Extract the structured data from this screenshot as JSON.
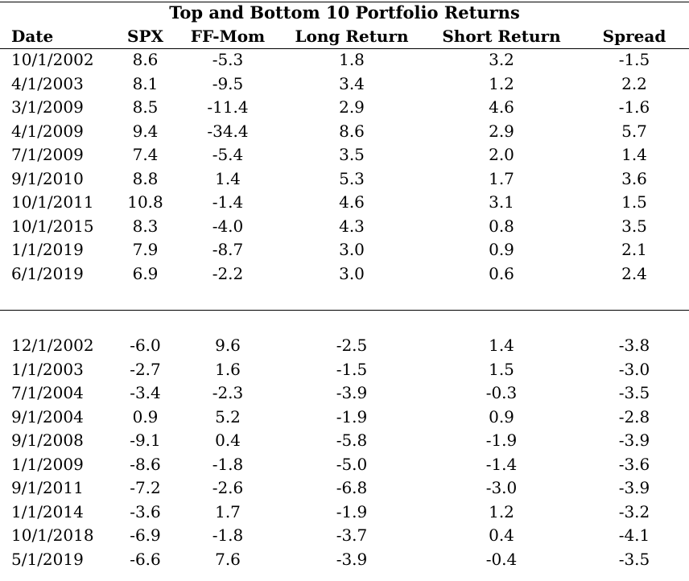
{
  "table": {
    "title": "Top and Bottom 10 Portfolio Returns",
    "columns": [
      "Date",
      "SPX",
      "FF-Mom",
      "Long Return",
      "Short Return",
      "Spread"
    ],
    "top_rows": [
      [
        "10/1/2002",
        "8.6",
        "-5.3",
        "1.8",
        "3.2",
        "-1.5"
      ],
      [
        "4/1/2003",
        "8.1",
        "-9.5",
        "3.4",
        "1.2",
        "2.2"
      ],
      [
        "3/1/2009",
        "8.5",
        "-11.4",
        "2.9",
        "4.6",
        "-1.6"
      ],
      [
        "4/1/2009",
        "9.4",
        "-34.4",
        "8.6",
        "2.9",
        "5.7"
      ],
      [
        "7/1/2009",
        "7.4",
        "-5.4",
        "3.5",
        "2.0",
        "1.4"
      ],
      [
        "9/1/2010",
        "8.8",
        "1.4",
        "5.3",
        "1.7",
        "3.6"
      ],
      [
        "10/1/2011",
        "10.8",
        "-1.4",
        "4.6",
        "3.1",
        "1.5"
      ],
      [
        "10/1/2015",
        "8.3",
        "-4.0",
        "4.3",
        "0.8",
        "3.5"
      ],
      [
        "1/1/2019",
        "7.9",
        "-8.7",
        "3.0",
        "0.9",
        "2.1"
      ],
      [
        "6/1/2019",
        "6.9",
        "-2.2",
        "3.0",
        "0.6",
        "2.4"
      ]
    ],
    "bottom_rows": [
      [
        "12/1/2002",
        "-6.0",
        "9.6",
        "-2.5",
        "1.4",
        "-3.8"
      ],
      [
        "1/1/2003",
        "-2.7",
        "1.6",
        "-1.5",
        "1.5",
        "-3.0"
      ],
      [
        "7/1/2004",
        "-3.4",
        "-2.3",
        "-3.9",
        "-0.3",
        "-3.5"
      ],
      [
        "9/1/2004",
        "0.9",
        "5.2",
        "-1.9",
        "0.9",
        "-2.8"
      ],
      [
        "9/1/2008",
        "-9.1",
        "0.4",
        "-5.8",
        "-1.9",
        "-3.9"
      ],
      [
        "1/1/2009",
        "-8.6",
        "-1.8",
        "-5.0",
        "-1.4",
        "-3.6"
      ],
      [
        "9/1/2011",
        "-7.2",
        "-2.6",
        "-6.8",
        "-3.0",
        "-3.9"
      ],
      [
        "1/1/2014",
        "-3.6",
        "1.7",
        "-1.9",
        "1.2",
        "-3.2"
      ],
      [
        "10/1/2018",
        "-6.9",
        "-1.8",
        "-3.7",
        "0.4",
        "-4.1"
      ],
      [
        "5/1/2019",
        "-6.6",
        "7.6",
        "-3.9",
        "-0.4",
        "-3.5"
      ]
    ]
  }
}
